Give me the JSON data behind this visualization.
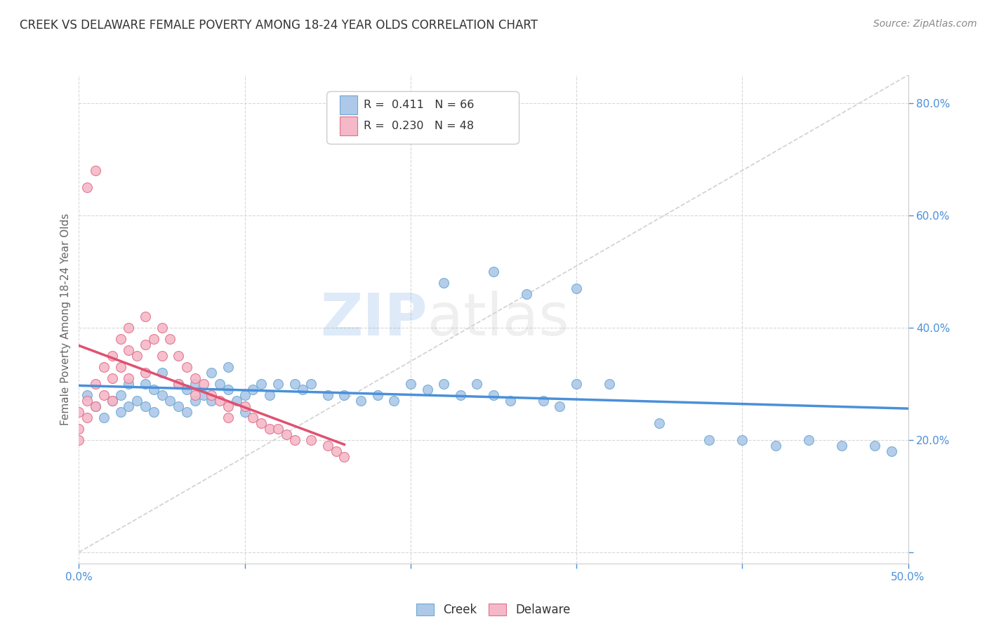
{
  "title": "CREEK VS DELAWARE FEMALE POVERTY AMONG 18-24 YEAR OLDS CORRELATION CHART",
  "source": "Source: ZipAtlas.com",
  "ylabel": "Female Poverty Among 18-24 Year Olds",
  "xlim": [
    0.0,
    0.5
  ],
  "ylim": [
    -0.02,
    0.85
  ],
  "xticks": [
    0.0,
    0.1,
    0.2,
    0.3,
    0.4,
    0.5
  ],
  "yticks": [
    0.0,
    0.2,
    0.4,
    0.6,
    0.8
  ],
  "creek_color": "#adc8e8",
  "creek_edge_color": "#6aaad4",
  "delaware_color": "#f5b8c8",
  "delaware_edge_color": "#e0708a",
  "creek_line_color": "#4a90d9",
  "delaware_line_color": "#e05070",
  "ref_line_color": "#d0d0d0",
  "legend_creek_label": "Creek",
  "legend_delaware_label": "Delaware",
  "creek_R": "0.411",
  "creek_N": "66",
  "delaware_R": "0.230",
  "delaware_N": "48",
  "watermark_zip": "ZIP",
  "watermark_atlas": "atlas",
  "creek_scatter_x": [
    0.005,
    0.01,
    0.015,
    0.02,
    0.025,
    0.025,
    0.03,
    0.03,
    0.035,
    0.04,
    0.04,
    0.045,
    0.045,
    0.05,
    0.05,
    0.055,
    0.06,
    0.06,
    0.065,
    0.065,
    0.07,
    0.07,
    0.075,
    0.08,
    0.08,
    0.085,
    0.09,
    0.09,
    0.095,
    0.1,
    0.1,
    0.105,
    0.11,
    0.115,
    0.12,
    0.13,
    0.135,
    0.14,
    0.15,
    0.16,
    0.17,
    0.18,
    0.19,
    0.2,
    0.21,
    0.22,
    0.23,
    0.24,
    0.25,
    0.26,
    0.28,
    0.29,
    0.3,
    0.32,
    0.35,
    0.38,
    0.4,
    0.42,
    0.44,
    0.46,
    0.48,
    0.49,
    0.22,
    0.25,
    0.27,
    0.3
  ],
  "creek_scatter_y": [
    0.28,
    0.26,
    0.24,
    0.27,
    0.28,
    0.25,
    0.3,
    0.26,
    0.27,
    0.3,
    0.26,
    0.29,
    0.25,
    0.32,
    0.28,
    0.27,
    0.3,
    0.26,
    0.29,
    0.25,
    0.3,
    0.27,
    0.28,
    0.32,
    0.27,
    0.3,
    0.33,
    0.29,
    0.27,
    0.28,
    0.25,
    0.29,
    0.3,
    0.28,
    0.3,
    0.3,
    0.29,
    0.3,
    0.28,
    0.28,
    0.27,
    0.28,
    0.27,
    0.3,
    0.29,
    0.3,
    0.28,
    0.3,
    0.28,
    0.27,
    0.27,
    0.26,
    0.3,
    0.3,
    0.23,
    0.2,
    0.2,
    0.19,
    0.2,
    0.19,
    0.19,
    0.18,
    0.48,
    0.5,
    0.46,
    0.47
  ],
  "delaware_scatter_x": [
    0.0,
    0.0,
    0.0,
    0.005,
    0.005,
    0.01,
    0.01,
    0.015,
    0.015,
    0.02,
    0.02,
    0.02,
    0.025,
    0.025,
    0.03,
    0.03,
    0.03,
    0.035,
    0.04,
    0.04,
    0.04,
    0.045,
    0.05,
    0.05,
    0.055,
    0.06,
    0.06,
    0.065,
    0.07,
    0.07,
    0.075,
    0.08,
    0.085,
    0.09,
    0.09,
    0.1,
    0.105,
    0.11,
    0.115,
    0.12,
    0.125,
    0.13,
    0.14,
    0.15,
    0.155,
    0.16,
    0.005,
    0.01
  ],
  "delaware_scatter_y": [
    0.25,
    0.22,
    0.2,
    0.27,
    0.24,
    0.3,
    0.26,
    0.33,
    0.28,
    0.35,
    0.31,
    0.27,
    0.38,
    0.33,
    0.4,
    0.36,
    0.31,
    0.35,
    0.42,
    0.37,
    0.32,
    0.38,
    0.4,
    0.35,
    0.38,
    0.35,
    0.3,
    0.33,
    0.31,
    0.28,
    0.3,
    0.28,
    0.27,
    0.26,
    0.24,
    0.26,
    0.24,
    0.23,
    0.22,
    0.22,
    0.21,
    0.2,
    0.2,
    0.19,
    0.18,
    0.17,
    0.65,
    0.68
  ]
}
